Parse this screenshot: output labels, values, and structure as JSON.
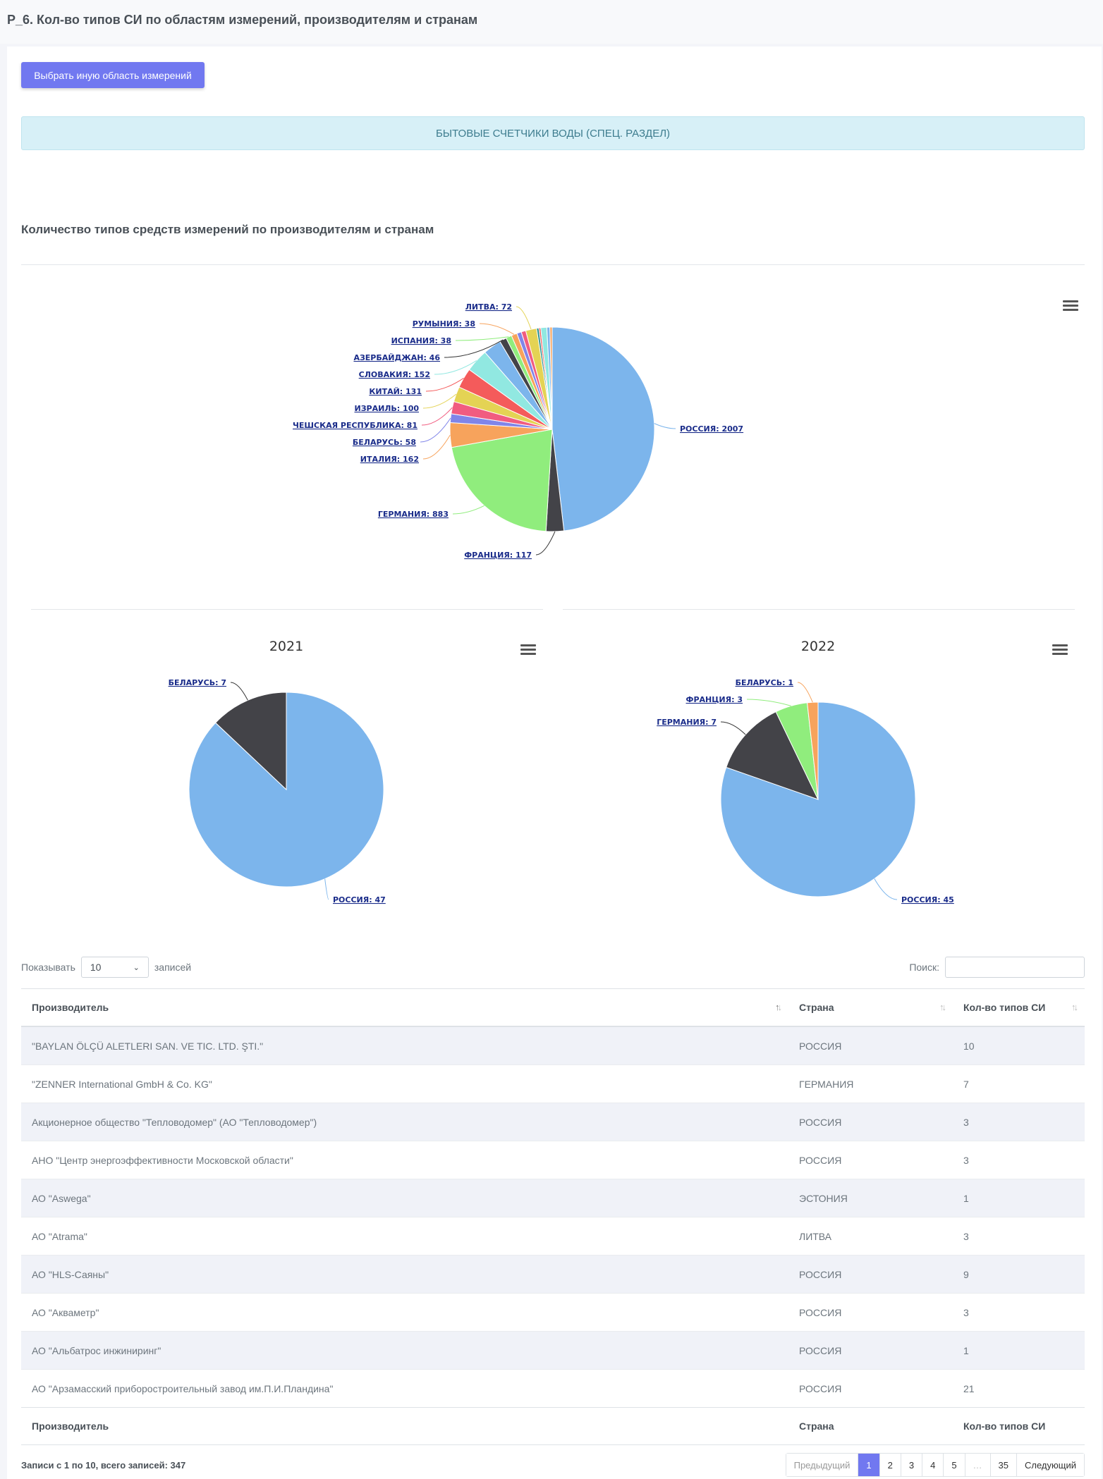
{
  "header": {
    "title": "Р_6. Кол-во типов СИ по областям измерений, производителям и странам"
  },
  "actions": {
    "choose_area_label": "Выбрать иную область измерений"
  },
  "selected_area": "БЫТОВЫЕ СЧЕТЧИКИ ВОДЫ (СПЕЦ. РАЗДЕЛ)",
  "charts_section": {
    "title": "Количество типов средств измерений по производителям и странам"
  },
  "chart_data": [
    {
      "type": "pie",
      "title": "",
      "slices": [
        {
          "label": "РОССИЯ",
          "value": 2007,
          "color": "#7cb5ec"
        },
        {
          "label": "ФРАНЦИЯ",
          "value": 117,
          "color": "#434348"
        },
        {
          "label": "ГЕРМАНИЯ",
          "value": 883,
          "color": "#90ed7d"
        },
        {
          "label": "ИТАЛИЯ",
          "value": 162,
          "color": "#f7a35c"
        },
        {
          "label": "БЕЛАРУСЬ",
          "value": 58,
          "color": "#8085e9"
        },
        {
          "label": "ЧЕШСКАЯ РЕСПУБЛИКА",
          "value": 81,
          "color": "#f15c80"
        },
        {
          "label": "ИЗРАИЛЬ",
          "value": 100,
          "color": "#e4d354"
        },
        {
          "label": "КИТАЙ",
          "value": 131,
          "color": "#f45b5b"
        },
        {
          "label": "СЛОВАКИЯ",
          "value": 152,
          "color": "#91e8e1"
        },
        {
          "label": "",
          "value": 120,
          "color": "#7cb5ec"
        },
        {
          "label": "АЗЕРБАЙДЖАН",
          "value": 46,
          "color": "#434348"
        },
        {
          "label": "ИСПАНИЯ",
          "value": 38,
          "color": "#90ed7d"
        },
        {
          "label": "РУМЫНИЯ",
          "value": 38,
          "color": "#f7a35c"
        },
        {
          "label": "",
          "value": 30,
          "color": "#8085e9"
        },
        {
          "label": "",
          "value": 30,
          "color": "#f15c80"
        },
        {
          "label": "ЛИТВА",
          "value": 72,
          "color": "#e4d354"
        },
        {
          "label": "",
          "value": 15,
          "color": "#2b908f"
        },
        {
          "label": "",
          "value": 12,
          "color": "#f45b5b"
        },
        {
          "label": "",
          "value": 40,
          "color": "#91e8e1"
        },
        {
          "label": "",
          "value": 20,
          "color": "#7cb5ec"
        },
        {
          "label": "",
          "value": 15,
          "color": "#f7a35c"
        }
      ]
    },
    {
      "type": "pie",
      "title": "2021",
      "slices": [
        {
          "label": "РОССИЯ",
          "value": 47,
          "color": "#7cb5ec"
        },
        {
          "label": "БЕЛАРУСЬ",
          "value": 7,
          "color": "#434348"
        }
      ]
    },
    {
      "type": "pie",
      "title": "2022",
      "slices": [
        {
          "label": "РОССИЯ",
          "value": 45,
          "color": "#7cb5ec"
        },
        {
          "label": "ГЕРМАНИЯ",
          "value": 7,
          "color": "#434348"
        },
        {
          "label": "ФРАНЦИЯ",
          "value": 3,
          "color": "#90ed7d"
        },
        {
          "label": "БЕЛАРУСЬ",
          "value": 1,
          "color": "#f7a35c"
        }
      ]
    }
  ],
  "table_controls": {
    "show_label": "Показывать",
    "page_size": "10",
    "entries_label": "записей",
    "search_label": "Поиск:",
    "search_value": ""
  },
  "table": {
    "columns": [
      "Производитель",
      "Страна",
      "Кол-во типов СИ"
    ],
    "rows": [
      [
        "\"BAYLAN ÖLÇÜ ALETLERI SAN. VE TIC. LTD. ŞTI.\"",
        "РОССИЯ",
        "10"
      ],
      [
        "\"ZENNER International GmbH & Co. KG\"",
        "ГЕРМАНИЯ",
        "7"
      ],
      [
        "Акционерное общество \"Тепловодомер\" (АО \"Тепловодомер\")",
        "РОССИЯ",
        "3"
      ],
      [
        "АНО \"Центр энергоэффективности Московской области\"",
        "РОССИЯ",
        "3"
      ],
      [
        "АО \"Aswega\"",
        "ЭСТОНИЯ",
        "1"
      ],
      [
        "АО \"Atrama\"",
        "ЛИТВА",
        "3"
      ],
      [
        "АО \"HLS-Саяны\"",
        "РОССИЯ",
        "9"
      ],
      [
        "АО \"Акваметр\"",
        "РОССИЯ",
        "3"
      ],
      [
        "АО \"Альбатрос инжиниринг\"",
        "РОССИЯ",
        "1"
      ],
      [
        "АО \"Арзамасский приборостроительный завод им.П.И.Пландина\"",
        "РОССИЯ",
        "21"
      ]
    ]
  },
  "footer": {
    "info": "Записи с 1 по 10, всего записей: 347",
    "pagination": {
      "prev": "Предыдущий",
      "pages": [
        "1",
        "2",
        "3",
        "4",
        "5",
        "…",
        "35"
      ],
      "next": "Следующий",
      "active": "1"
    }
  }
}
